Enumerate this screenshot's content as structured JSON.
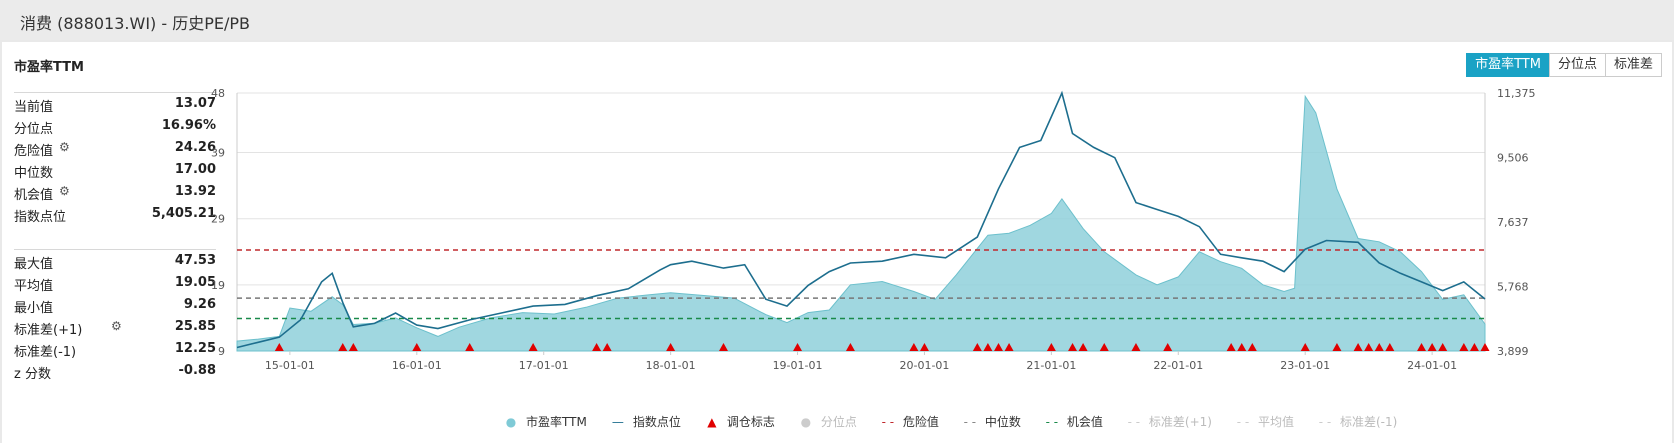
{
  "window": {
    "title": "消费 (888013.WI) - 历史PE/PB"
  },
  "panel": {
    "title": "市盈率TTM",
    "buttons": [
      "市盈率TTM",
      "分位点",
      "标准差"
    ],
    "active_button": "市盈率TTM"
  },
  "stats_top": [
    {
      "label": "当前值",
      "value": "13.07",
      "gear": false
    },
    {
      "label": "分位点",
      "value": "16.96%",
      "gear": false
    },
    {
      "label": "危险值",
      "value": "24.26",
      "gear": true
    },
    {
      "label": "中位数",
      "value": "17.00",
      "gear": false
    },
    {
      "label": "机会值",
      "value": "13.92",
      "gear": true
    },
    {
      "label": "指数点位",
      "value": "5,405.21",
      "gear": false
    }
  ],
  "stats_bottom": [
    {
      "label": "最大值",
      "value": "47.53",
      "gear": false
    },
    {
      "label": "平均值",
      "value": "19.05",
      "gear": false
    },
    {
      "label": "最小值",
      "value": "9.26",
      "gear": false
    },
    {
      "label": "标准差(+1)",
      "value": "25.85",
      "gear": true
    },
    {
      "label": "标准差(-1)",
      "value": "12.25",
      "gear": false
    },
    {
      "label": "z 分数",
      "value": "-0.88",
      "gear": false
    }
  ],
  "legend": [
    {
      "label": "市盈率TTM",
      "symbol": "●",
      "color": "#7fcad6",
      "active": true
    },
    {
      "label": "指数点位",
      "symbol": "—",
      "color": "#1d6e8e",
      "active": true
    },
    {
      "label": "调仓标志",
      "symbol": "▲",
      "color": "#e00000",
      "active": true
    },
    {
      "label": "分位点",
      "symbol": "●",
      "color": "#cccccc",
      "active": false
    },
    {
      "label": "危险值",
      "symbol": "- -",
      "color": "#c0282d",
      "active": true
    },
    {
      "label": "中位数",
      "symbol": "- -",
      "color": "#888888",
      "active": true
    },
    {
      "label": "机会值",
      "symbol": "- -",
      "color": "#1a8a4a",
      "active": true
    },
    {
      "label": "标准差(+1)",
      "symbol": "- -",
      "color": "#cccccc",
      "active": false
    },
    {
      "label": "平均值",
      "symbol": "- -",
      "color": "#cccccc",
      "active": false
    },
    {
      "label": "标准差(-1)",
      "symbol": "- -",
      "color": "#cccccc",
      "active": false
    }
  ],
  "colors": {
    "pe_fill": "#8fd0da",
    "pe_line": "#6cc0cc",
    "index_line": "#1d6e8e",
    "danger": "#c0282d",
    "median": "#777777",
    "opportunity": "#1a8a4a",
    "marker": "#e00000",
    "accent": "#1aa2c5"
  },
  "chart_data": {
    "type": "area",
    "x_tick_labels": [
      "15-01-01",
      "16-01-01",
      "17-01-01",
      "18-01-01",
      "19-01-01",
      "20-01-01",
      "21-01-01",
      "22-01-01",
      "23-01-01",
      "24-01-01"
    ],
    "x_range": [
      "2014-08",
      "2024-06"
    ],
    "y_left": {
      "ticks": [
        "9",
        "19",
        "29",
        "39",
        "48"
      ],
      "range": [
        9,
        48
      ]
    },
    "y_right": {
      "ticks": [
        "3,899",
        "5,768",
        "7,637",
        "9,506",
        "11,375"
      ],
      "range": [
        3899,
        11375
      ]
    },
    "reference_lines": {
      "danger": 24.26,
      "median": 17.0,
      "opportunity": 13.92
    },
    "series": [
      {
        "name": "市盈率TTM",
        "axis": "left",
        "x": [
          "2014-08",
          "2014-10",
          "2014-12",
          "2015-01",
          "2015-03",
          "2015-05",
          "2015-06",
          "2015-07",
          "2015-09",
          "2015-11",
          "2016-01",
          "2016-03",
          "2016-05",
          "2016-08",
          "2016-11",
          "2017-02",
          "2017-05",
          "2017-08",
          "2017-11",
          "2018-01",
          "2018-04",
          "2018-07",
          "2018-10",
          "2018-12",
          "2019-02",
          "2019-04",
          "2019-06",
          "2019-09",
          "2019-12",
          "2020-02",
          "2020-04",
          "2020-07",
          "2020-09",
          "2020-11",
          "2021-01",
          "2021-02",
          "2021-04",
          "2021-06",
          "2021-09",
          "2021-11",
          "2022-01",
          "2022-03",
          "2022-05",
          "2022-07",
          "2022-09",
          "2022-11",
          "2022-12",
          "2023-01",
          "2023-02",
          "2023-04",
          "2023-06",
          "2023-08",
          "2023-10",
          "2023-12",
          "2024-02",
          "2024-04",
          "2024-06"
        ],
        "values": [
          10.5,
          10.8,
          11.2,
          15.5,
          15.0,
          17.2,
          16.0,
          13.0,
          13.2,
          14.0,
          12.5,
          11.2,
          12.6,
          14.0,
          14.8,
          14.6,
          15.6,
          17.0,
          17.5,
          17.8,
          17.4,
          17.0,
          14.5,
          13.3,
          14.8,
          15.2,
          19.0,
          19.5,
          18.0,
          16.8,
          20.5,
          26.5,
          26.8,
          28.0,
          29.8,
          32.0,
          27.5,
          24.0,
          20.5,
          19.0,
          20.2,
          24.0,
          22.5,
          21.5,
          19.0,
          18.0,
          18.5,
          47.5,
          45.0,
          33.5,
          26.0,
          25.5,
          24.0,
          21.0,
          16.8,
          17.5,
          13.07
        ]
      },
      {
        "name": "指数点位",
        "axis": "right",
        "x": [
          "2014-08",
          "2014-10",
          "2014-12",
          "2015-02",
          "2015-04",
          "2015-05",
          "2015-06",
          "2015-07",
          "2015-09",
          "2015-11",
          "2016-01",
          "2016-03",
          "2016-06",
          "2016-09",
          "2016-12",
          "2017-03",
          "2017-06",
          "2017-09",
          "2017-12",
          "2018-01",
          "2018-03",
          "2018-06",
          "2018-08",
          "2018-10",
          "2018-12",
          "2019-02",
          "2019-04",
          "2019-06",
          "2019-09",
          "2019-12",
          "2020-03",
          "2020-06",
          "2020-08",
          "2020-10",
          "2020-12",
          "2021-02",
          "2021-03",
          "2021-05",
          "2021-07",
          "2021-09",
          "2021-11",
          "2022-01",
          "2022-03",
          "2022-05",
          "2022-07",
          "2022-09",
          "2022-11",
          "2023-01",
          "2023-03",
          "2023-06",
          "2023-08",
          "2023-10",
          "2023-12",
          "2024-02",
          "2024-04",
          "2024-06"
        ],
        "values": [
          4000,
          4150,
          4300,
          4800,
          5900,
          6150,
          5300,
          4600,
          4700,
          5000,
          4650,
          4550,
          4800,
          5000,
          5200,
          5250,
          5500,
          5700,
          6250,
          6400,
          6500,
          6300,
          6400,
          5400,
          5200,
          5800,
          6200,
          6450,
          6500,
          6700,
          6600,
          7200,
          8600,
          9800,
          10000,
          11375,
          10200,
          9800,
          9500,
          8200,
          8000,
          7800,
          7500,
          6700,
          6600,
          6500,
          6200,
          6850,
          7100,
          7050,
          6450,
          6150,
          5900,
          5650,
          5900,
          5405
        ]
      }
    ],
    "markers": {
      "name": "调仓标志",
      "x": [
        "2014-12",
        "2015-06",
        "2015-07",
        "2016-01",
        "2016-06",
        "2016-12",
        "2017-06",
        "2017-07",
        "2018-01",
        "2018-06",
        "2019-01",
        "2019-06",
        "2019-12",
        "2020-01",
        "2020-06",
        "2020-07",
        "2020-08",
        "2020-09",
        "2021-01",
        "2021-03",
        "2021-04",
        "2021-06",
        "2021-09",
        "2021-12",
        "2022-06",
        "2022-07",
        "2022-08",
        "2023-01",
        "2023-04",
        "2023-06",
        "2023-07",
        "2023-08",
        "2023-09",
        "2023-12",
        "2024-01",
        "2024-02",
        "2024-04",
        "2024-05",
        "2024-06"
      ]
    }
  }
}
